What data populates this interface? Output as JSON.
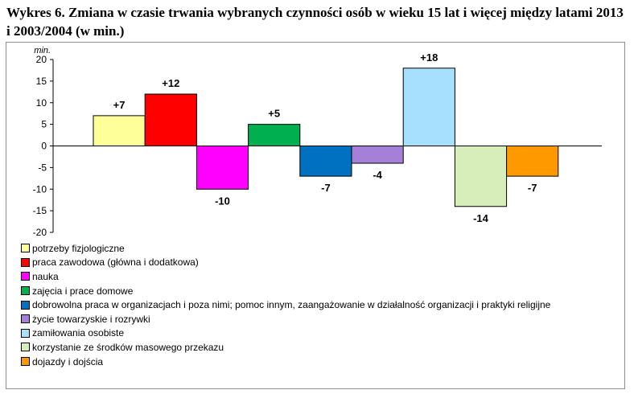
{
  "title": "Wykres 6. Zmiana w czasie trwania wybranych czynności osób w wieku 15 lat i więcej między latami 2013 i 2003/2004 (w min.)",
  "chart_data": {
    "type": "bar",
    "ylabel": "min.",
    "ylim": [
      -20,
      20
    ],
    "yticks": [
      "20",
      "15",
      "10",
      "5",
      "0",
      "-5",
      "-10",
      "-15",
      "-20"
    ],
    "grid": false,
    "legend_position": "bottom",
    "categories": [
      "potrzeby fizjologiczne",
      "praca zawodowa (główna i dodatkowa)",
      "nauka",
      "zajęcia i prace domowe",
      "dobrowolna praca w organizacjach i poza nimi; pomoc innym, zaangażowanie w działalność organizacji i praktyki religijne",
      "życie towarzyskie i rozrywki",
      "zamiłowania osobiste",
      "korzystanie ze środków masowego przekazu",
      "dojazdy i dojścia"
    ],
    "values": [
      7,
      12,
      -10,
      5,
      -7,
      -4,
      18,
      -14,
      -7
    ],
    "data_labels": [
      "+7",
      "+12",
      "-10",
      "+5",
      "-7",
      "-4",
      "+18",
      "-14",
      "-7"
    ],
    "colors": [
      "#ffff99",
      "#ff0000",
      "#ff00ff",
      "#00b050",
      "#0070c0",
      "#a680d8",
      "#a6e0ff",
      "#d8eeb8",
      "#ff9900"
    ]
  }
}
